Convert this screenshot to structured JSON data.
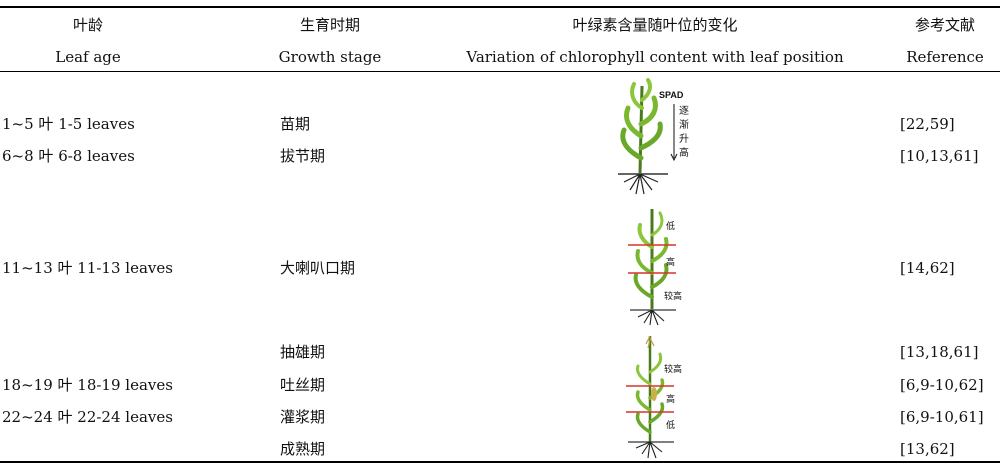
{
  "headers": {
    "leaf_age_cn": "叶龄",
    "leaf_age_en": "Leaf age",
    "growth_stage_cn": "生育时期",
    "growth_stage_en": "Growth stage",
    "variation_cn": "叶绿素含量随叶位的变化",
    "variation_en": "Variation of chlorophyll content with leaf position",
    "reference_cn": "参考文献",
    "reference_en": "Reference"
  },
  "rows": [
    {
      "leaf_age": "1~5 叶 1-5 leaves",
      "stage": "苗期",
      "ref": "[22,59]"
    },
    {
      "leaf_age": "6~8 叶 6-8 leaves",
      "stage": "拔节期",
      "ref": "[10,13,61]"
    },
    {
      "leaf_age": "11~13 叶 11-13 leaves",
      "stage": "大喇叭口期",
      "ref": "[14,62]"
    },
    {
      "leaf_age": "",
      "stage": "抽雄期",
      "ref": "[13,18,61]"
    },
    {
      "leaf_age": "18~19 叶 18-19 leaves",
      "stage": "吐丝期",
      "ref": "[6,9-10,62]"
    },
    {
      "leaf_age": "22~24 叶 22-24 leaves",
      "stage": "灌浆期",
      "ref": "[6,9-10,61]"
    },
    {
      "leaf_age": "",
      "stage": "成熟期",
      "ref": "[13,62]"
    }
  ],
  "figures": {
    "fig1": {
      "spad": "SPAD",
      "arrow_text": [
        "逐",
        "渐",
        "升",
        "高"
      ]
    },
    "fig2": {
      "labels": [
        "低",
        "高",
        "较高"
      ]
    },
    "fig3": {
      "labels": [
        "较高",
        "高",
        "低"
      ]
    }
  }
}
